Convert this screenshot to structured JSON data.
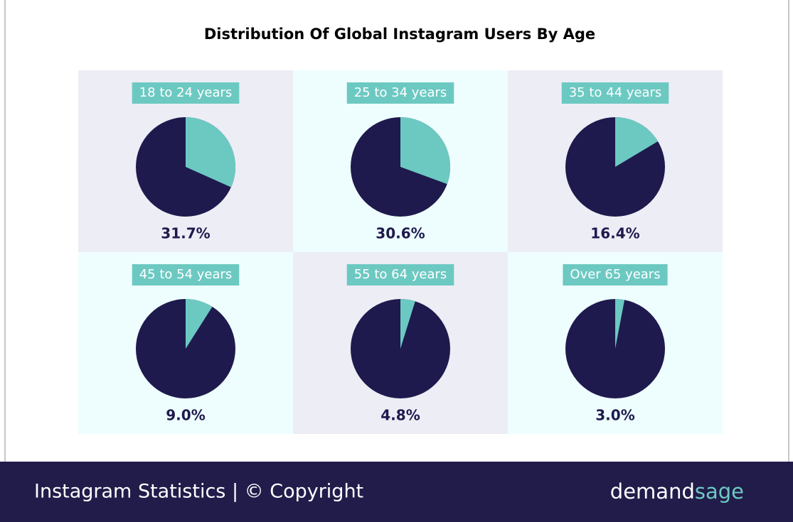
{
  "chart_data": {
    "type": "pie",
    "title": "Distribution Of Global Instagram Users By Age",
    "categories": [
      "18 to 24 years",
      "25 to 34 years",
      "35 to 44 years",
      "45 to 54 years",
      "55 to 64 years",
      "Over 65 years"
    ],
    "values": [
      31.7,
      30.6,
      16.4,
      9.0,
      4.8,
      3.0
    ],
    "value_labels": [
      "31.7%",
      "30.6%",
      "16.4%",
      "9.0%",
      "4.8%",
      "3.0%"
    ],
    "color": "#6cc9c2",
    "rest_color": "#1e1a4d"
  },
  "footer": {
    "caption": "Instagram Statistics | © Copyright",
    "brand": [
      "demand",
      "sage"
    ]
  }
}
